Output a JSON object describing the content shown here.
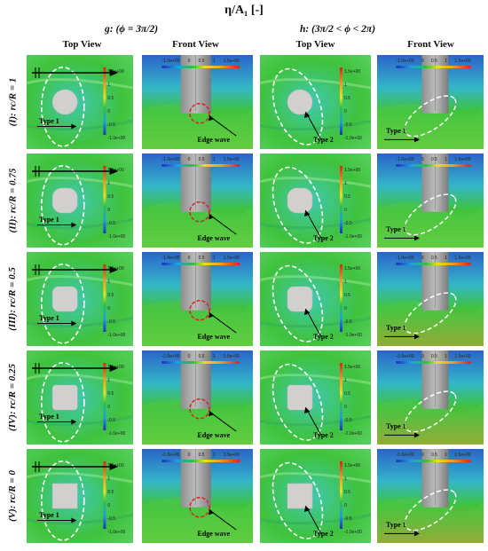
{
  "title": "η/A₁ [-]",
  "groups": [
    {
      "label": "g: (ϕ = 3π/2)"
    },
    {
      "label": "h: (3π/2 < ϕ < 2π)"
    }
  ],
  "columns": [
    "Top View",
    "Front View",
    "Top View",
    "Front View"
  ],
  "rows": [
    {
      "label": "(I): rc/R = 1"
    },
    {
      "label": "(II): rc/R = 0.75"
    },
    {
      "label": "(III): rc/R = 0.5"
    },
    {
      "label": "(IV): rc/R = 0.25"
    },
    {
      "label": "(V): rc/R = 0"
    }
  ],
  "annotations": {
    "type1": "Type 1",
    "type2": "Type 2",
    "edge_wave": "Edge wave"
  },
  "colorbar": {
    "ticks": [
      "1.5e+00",
      "1",
      "0.5",
      "0",
      "-0.5",
      "-1.0e+00"
    ],
    "horizontal_ticks": [
      "-1.0e+00",
      "0",
      "0.5",
      "1",
      "1.5e+00"
    ]
  },
  "colors": {
    "water_green": "#3fc23c",
    "water_cyan": "#3fc9b0",
    "water_blue": "#2b64c9",
    "cylinder_gray": "#a9a9a9",
    "cross_section": "#d2d0cf"
  }
}
